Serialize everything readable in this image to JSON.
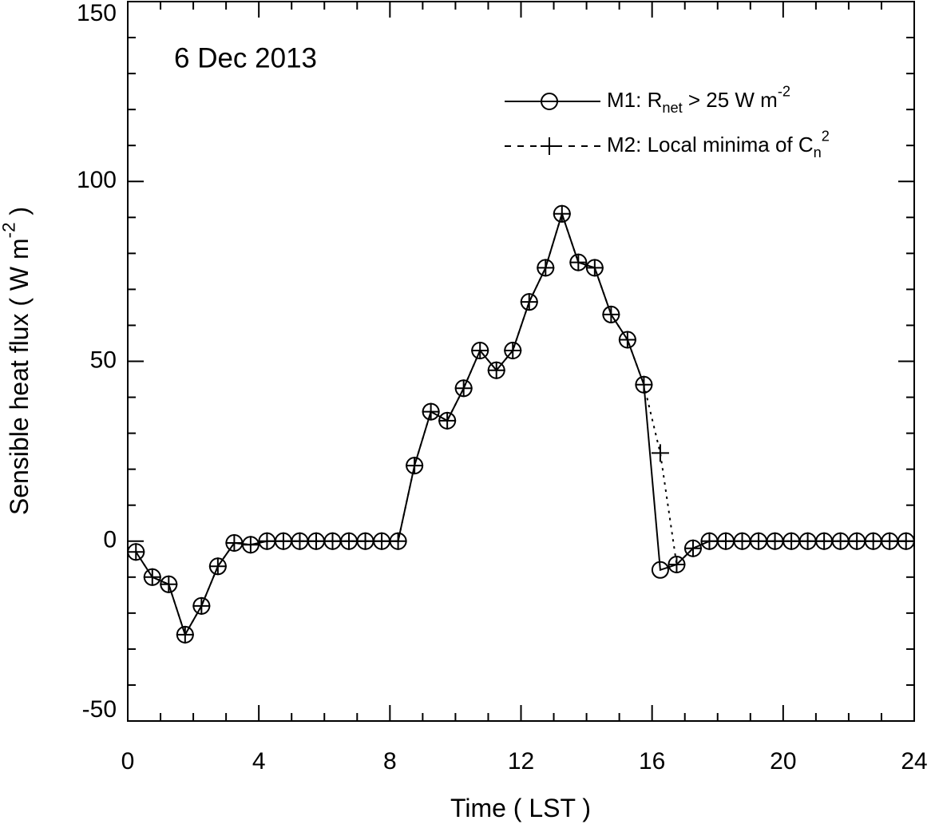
{
  "chart_data": {
    "type": "line",
    "annotation": "6 Dec 2013",
    "xlabel": [
      {
        "text": "Time ( LST )"
      }
    ],
    "ylabel": [
      {
        "text": "Sensible heat flux ( W m"
      },
      {
        "text": "-2",
        "shift": "sup"
      },
      {
        "text": " )"
      }
    ],
    "x": [
      0.25,
      0.75,
      1.25,
      1.75,
      2.25,
      2.75,
      3.25,
      3.75,
      4.25,
      4.75,
      5.25,
      5.75,
      6.25,
      6.75,
      7.25,
      7.75,
      8.25,
      8.75,
      9.25,
      9.75,
      10.25,
      10.75,
      11.25,
      11.75,
      12.25,
      12.75,
      13.25,
      13.75,
      14.25,
      14.75,
      15.25,
      15.75,
      16.25,
      16.75,
      17.25,
      17.75,
      18.25,
      18.75,
      19.25,
      19.75,
      20.25,
      20.75,
      21.25,
      21.75,
      22.25,
      22.75,
      23.25,
      23.75
    ],
    "series": [
      {
        "name": [
          {
            "text": "M1: R"
          },
          {
            "text": "net",
            "shift": "sub"
          },
          {
            "text": " > 25 W m"
          },
          {
            "text": "-2",
            "shift": "sup"
          }
        ],
        "color": "#000000",
        "line": "solid",
        "marker": "circle",
        "values": [
          -3,
          -10,
          -12,
          -26,
          -18,
          -7,
          -0.5,
          -1,
          0,
          0,
          0,
          0,
          0,
          0,
          0,
          0,
          0,
          21,
          36,
          33.5,
          42.5,
          53,
          47.5,
          53,
          66.5,
          76,
          91,
          77.5,
          76,
          63,
          56,
          43.5,
          -8,
          -6.5,
          -2,
          0,
          0,
          0,
          0,
          0,
          0,
          0,
          0,
          0,
          0,
          0,
          0,
          0
        ]
      },
      {
        "name": [
          {
            "text": "M2: Local minima of C"
          },
          {
            "text": "n",
            "shift": "sub"
          },
          {
            "text": "2",
            "shift": "sup"
          }
        ],
        "color": "#000000",
        "line": "dotted",
        "marker": "plus",
        "values": [
          -3,
          -10,
          -12,
          -26,
          -18,
          -7,
          -0.5,
          -1,
          0,
          0,
          0,
          0,
          0,
          0,
          0,
          0,
          0,
          21,
          36,
          33.5,
          42.5,
          53,
          47.5,
          53,
          66.5,
          76,
          91,
          77.5,
          76,
          63,
          56,
          43.5,
          24.5,
          -6.5,
          -2,
          0,
          0,
          0,
          0,
          0,
          0,
          0,
          0,
          0,
          0,
          0,
          0,
          0
        ]
      }
    ],
    "xlim": [
      0,
      24
    ],
    "xticks": [
      0,
      4,
      8,
      12,
      16,
      20,
      24
    ],
    "xminorticks": [
      1,
      2,
      3,
      5,
      6,
      7,
      9,
      10,
      11,
      13,
      14,
      15,
      17,
      18,
      19,
      21,
      22,
      23
    ],
    "ylim": [
      -50,
      150
    ],
    "yticks": [
      -50,
      0,
      50,
      100,
      150
    ],
    "yminorticks": [
      -40,
      -30,
      -20,
      -10,
      10,
      20,
      30,
      40,
      60,
      70,
      80,
      90,
      110,
      120,
      130,
      140
    ],
    "legend": "upper right"
  }
}
